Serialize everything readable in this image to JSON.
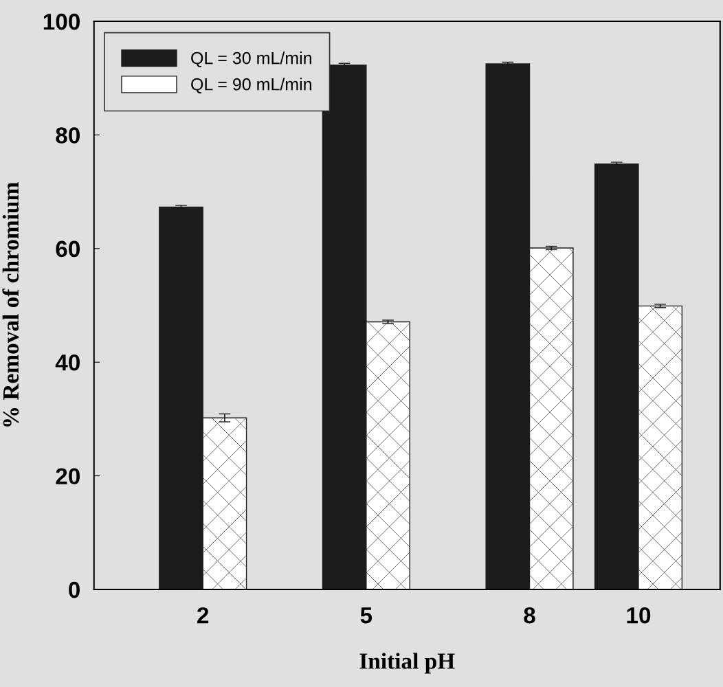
{
  "chart_data": {
    "type": "bar",
    "xlabel": "Initial pH",
    "ylabel": "% Removal of chromium",
    "x": [
      2,
      5,
      8,
      10
    ],
    "xlim": [
      0,
      11.5
    ],
    "xticks": [
      2,
      5,
      8,
      10
    ],
    "ylim": [
      0,
      100
    ],
    "yticks": [
      0,
      20,
      40,
      60,
      80,
      100
    ],
    "grid": false,
    "legend": "top left",
    "series": [
      {
        "name": "QL = 30 mL/min",
        "color": "#1c1c1c",
        "values": [
          67.3,
          92.3,
          92.5,
          74.9
        ],
        "errors": [
          0.3,
          0.3,
          0.3,
          0.3
        ]
      },
      {
        "name": "QL = 90 mL/min",
        "color": "#ffffff",
        "values": [
          30.2,
          47.1,
          60.1,
          49.9
        ],
        "errors": [
          0.7,
          0.3,
          0.3,
          0.3
        ]
      }
    ]
  }
}
